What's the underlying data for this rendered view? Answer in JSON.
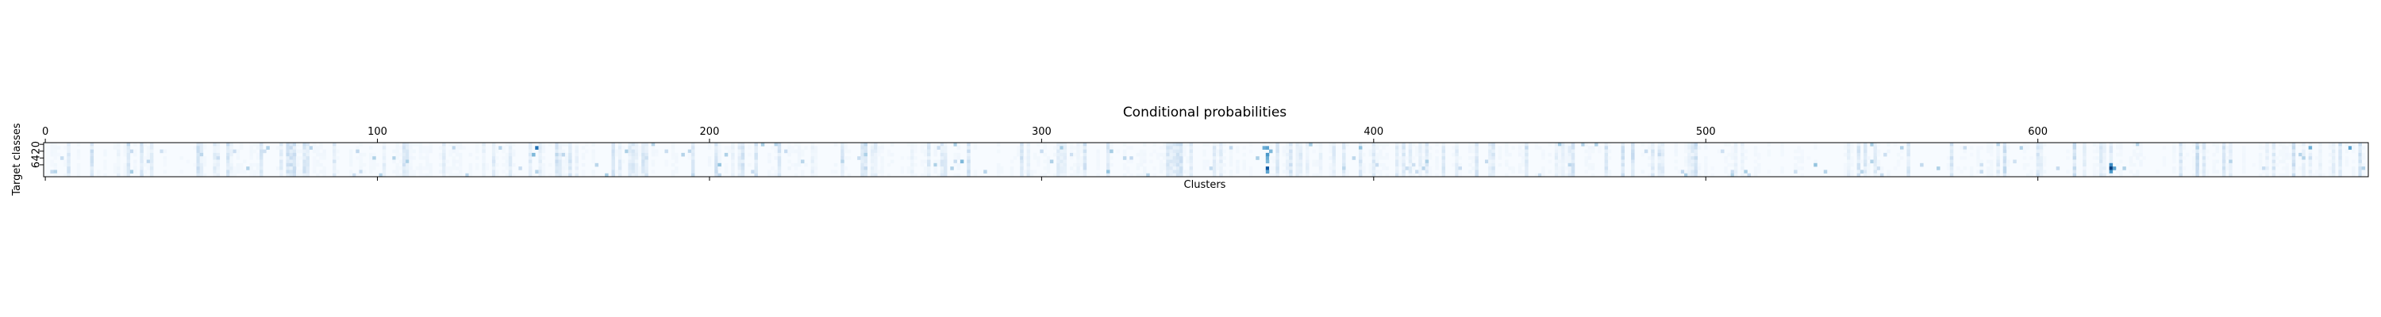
{
  "chart_data": {
    "type": "heatmap",
    "title": "Conditional probabilities",
    "xlabel": "Clusters",
    "ylabel": "Target classes",
    "x_range": [
      0,
      699
    ],
    "x_ticks": [
      0,
      100,
      200,
      300,
      400,
      500,
      600
    ],
    "x_tick_position": "top",
    "y_ticks": [
      0,
      2,
      4,
      6
    ],
    "y_tick_labels": [
      "0",
      "2",
      "4",
      "6"
    ],
    "rows": 10,
    "columns": 700,
    "value_range": [
      0,
      1
    ],
    "colormap": "Blues",
    "grid": false,
    "hot_cells": [
      {
        "cluster": 148,
        "class": 1,
        "value": 0.75
      },
      {
        "cluster": 147,
        "class": 3,
        "value": 0.45
      },
      {
        "cluster": 203,
        "class": 6,
        "value": 0.4
      },
      {
        "cluster": 276,
        "class": 5,
        "value": 0.45
      },
      {
        "cluster": 306,
        "class": 1,
        "value": 0.35
      },
      {
        "cluster": 320,
        "class": 8,
        "value": 0.4
      },
      {
        "cluster": 321,
        "class": 2,
        "value": 0.35
      },
      {
        "cluster": 367,
        "class": 1,
        "value": 0.5
      },
      {
        "cluster": 368,
        "class": 1,
        "value": 0.55
      },
      {
        "cluster": 368,
        "class": 3,
        "value": 0.6
      },
      {
        "cluster": 368,
        "class": 4,
        "value": 0.5
      },
      {
        "cluster": 368,
        "class": 5,
        "value": 0.45
      },
      {
        "cluster": 368,
        "class": 7,
        "value": 0.85
      },
      {
        "cluster": 368,
        "class": 8,
        "value": 0.55
      },
      {
        "cluster": 369,
        "class": 2,
        "value": 0.45
      },
      {
        "cluster": 396,
        "class": 1,
        "value": 0.4
      },
      {
        "cluster": 456,
        "class": 0,
        "value": 0.35
      },
      {
        "cluster": 533,
        "class": 6,
        "value": 0.4
      },
      {
        "cluster": 622,
        "class": 6,
        "value": 0.65
      },
      {
        "cluster": 622,
        "class": 7,
        "value": 0.95
      },
      {
        "cluster": 622,
        "class": 8,
        "value": 0.6
      },
      {
        "cluster": 623,
        "class": 7,
        "value": 0.55
      },
      {
        "cluster": 658,
        "class": 5,
        "value": 0.3
      },
      {
        "cluster": 682,
        "class": 1,
        "value": 0.5
      },
      {
        "cluster": 694,
        "class": 1,
        "value": 0.55
      }
    ],
    "background_value": 0.03
  }
}
